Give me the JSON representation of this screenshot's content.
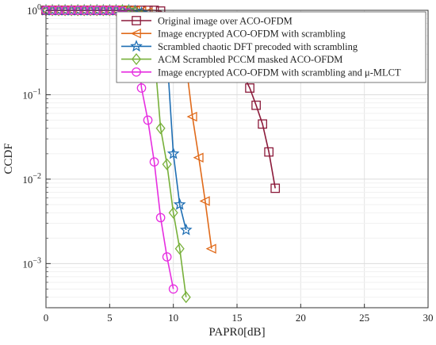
{
  "chart_data": {
    "type": "line",
    "title": "",
    "xlabel": "PAPR0[dB]",
    "ylabel": "CCDF",
    "xlim": [
      0,
      30
    ],
    "ylim": [
      0.0003,
      1
    ],
    "y_scale": "log",
    "grid": true,
    "legend_position": "top-right",
    "x_ticks": [
      "0",
      "5",
      "10",
      "15",
      "20",
      "25",
      "30"
    ],
    "y_ticks": [
      {
        "value": 1,
        "base": "10",
        "exp": "0"
      },
      {
        "value": 0.1,
        "base": "10",
        "exp": "−1"
      },
      {
        "value": 0.01,
        "base": "10",
        "exp": "−2"
      },
      {
        "value": 0.001,
        "base": "10",
        "exp": "−3"
      }
    ],
    "series": [
      {
        "name": "Original image over ACO-OFDM",
        "color": "#8b1a3a",
        "marker": "square",
        "x": [
          0,
          0.5,
          1,
          1.5,
          2,
          2.5,
          3,
          3.5,
          4,
          4.5,
          5,
          5.5,
          6,
          6.5,
          7,
          7.5,
          8,
          8.5,
          9,
          15.5,
          16,
          16.5,
          17,
          17.5,
          18
        ],
        "y": [
          1,
          1,
          1,
          1,
          1,
          1,
          1,
          1,
          1,
          1,
          1,
          1,
          1,
          1,
          1,
          1,
          1,
          1,
          0.98,
          0.17,
          0.12,
          0.075,
          0.045,
          0.021,
          0.0078
        ]
      },
      {
        "name": "Image encrypted ACO-OFDM with scrambling",
        "color": "#e06a1a",
        "marker": "triangle-left",
        "x": [
          0,
          0.5,
          1,
          1.5,
          2,
          2.5,
          3,
          3.5,
          4,
          4.5,
          5,
          5.5,
          6,
          6.5,
          7,
          7.5,
          8,
          8.5,
          9,
          9.5,
          10,
          10.5,
          11,
          11.5,
          12,
          12.5,
          13
        ],
        "y": [
          1,
          1,
          1,
          1,
          1,
          1,
          1,
          1,
          1,
          1,
          1,
          1,
          1,
          1,
          1,
          0.98,
          0.95,
          0.85,
          0.7,
          0.55,
          0.4,
          0.3,
          0.23,
          0.055,
          0.018,
          0.0055,
          0.0015
        ]
      },
      {
        "name": "Scrambled chaotic DFT precoded with scrambling",
        "color": "#1f6fb4",
        "marker": "star",
        "x": [
          0,
          0.5,
          1,
          1.5,
          2,
          2.5,
          3,
          3.5,
          4,
          4.5,
          5,
          5.5,
          6,
          6.5,
          7,
          7.5,
          8,
          8.5,
          9,
          9.5,
          10,
          10.5,
          11
        ],
        "y": [
          1,
          1,
          1,
          1,
          1,
          1,
          1,
          1,
          1,
          1,
          1,
          1,
          1,
          1,
          0.98,
          0.93,
          0.82,
          0.6,
          0.45,
          0.3,
          0.02,
          0.005,
          0.0025
        ]
      },
      {
        "name": "ACM Scrambled PCCM masked ACO-OFDM",
        "color": "#77b03a",
        "marker": "diamond",
        "x": [
          0,
          0.5,
          1,
          1.5,
          2,
          2.5,
          3,
          3.5,
          4,
          4.5,
          5,
          5.5,
          6,
          6.5,
          7,
          7.5,
          8,
          8.5,
          9,
          9.5,
          10,
          10.5,
          11
        ],
        "y": [
          1,
          1,
          1,
          1,
          1,
          1,
          1,
          1,
          1,
          1,
          1,
          1,
          1,
          0.99,
          0.96,
          0.88,
          0.7,
          0.32,
          0.04,
          0.015,
          0.004,
          0.0015,
          0.0004
        ]
      },
      {
        "name": "Image encrypted ACO-OFDM with scrambling and μ-MLCT",
        "color": "#e62ee0",
        "marker": "circle",
        "x": [
          0,
          0.5,
          1,
          1.5,
          2,
          2.5,
          3,
          3.5,
          4,
          4.5,
          5,
          5.5,
          6,
          6.5,
          7,
          7.5,
          8,
          8.5,
          9,
          9.5,
          10
        ],
        "y": [
          1,
          1,
          1,
          1,
          1,
          1,
          1,
          1,
          1,
          1,
          1,
          1,
          0.98,
          0.92,
          0.8,
          0.12,
          0.05,
          0.016,
          0.0035,
          0.0012,
          0.0005
        ]
      }
    ]
  }
}
